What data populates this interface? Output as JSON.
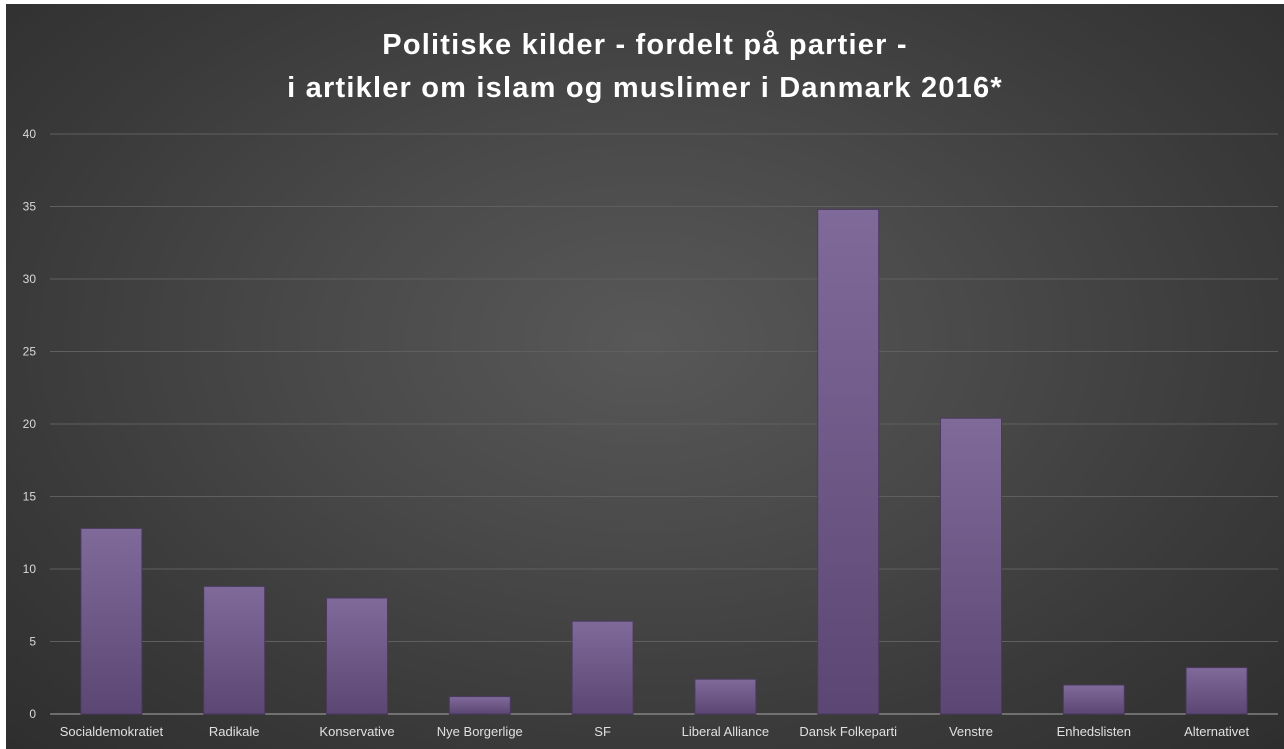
{
  "chart_data": {
    "type": "bar",
    "title_line1": "Politiske kilder - fordelt på partier -",
    "title_line2": "i artikler om islam og muslimer i Danmark 2016*",
    "categories": [
      "Socialdemokratiet",
      "Radikale",
      "Konservative",
      "Nye Borgerlige",
      "SF",
      "Liberal Alliance",
      "Dansk Folkeparti",
      "Venstre",
      "Enhedslisten",
      "Alternativet"
    ],
    "values": [
      12.8,
      8.8,
      8.0,
      1.2,
      6.4,
      2.4,
      34.8,
      20.4,
      2.0,
      3.2
    ],
    "ylim": [
      0,
      40
    ],
    "yticks": [
      0,
      5,
      10,
      15,
      20,
      25,
      30,
      35,
      40
    ],
    "xlabel": "",
    "ylabel": "",
    "grid": true,
    "legend": "none",
    "colors": {
      "bar_top": "#7f6a9a",
      "bar_bottom": "#5c4673",
      "bar_edge": "#4a3a5e",
      "gridline": "#5f5f5f",
      "axis": "#a8a8a8"
    }
  }
}
